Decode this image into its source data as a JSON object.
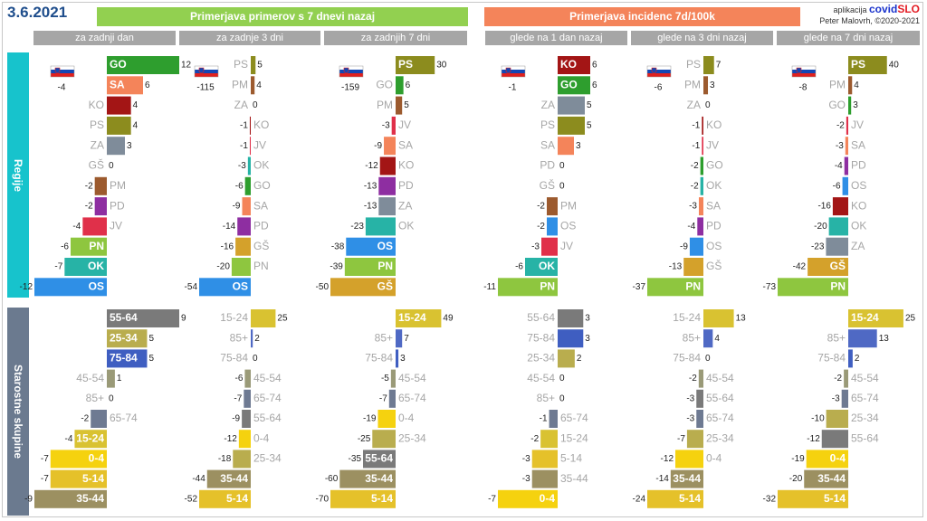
{
  "header": {
    "date": "3.6.2021",
    "banner_left": "Primerjava primerov s 7 dnevi nazaj",
    "banner_right": "Primerjava incidenc 7d/100k",
    "app_label": "aplikacija",
    "brand_a": "covid",
    "brand_b": "SLO",
    "author": "Peter Malovrh, ©2020-2021"
  },
  "columns": [
    "za zadnji dan",
    "za zadnje 3 dni",
    "za zadnjih 7 dni",
    "glede na 1 dan nazaj",
    "glede na 3 dni nazaj",
    "glede na 7 dni nazaj"
  ],
  "sides": {
    "regions": "Regije",
    "ages": "Starostne skupine"
  },
  "colors": {
    "GO": "#2e9e2e",
    "SA": "#f4845a",
    "KO": "#a31515",
    "PS": "#8c8c1e",
    "ZA": "#7f8c9a",
    "GŠ": "#d4a12b",
    "PM": "#9c5a2e",
    "PD": "#8e2ea1",
    "JV": "#e0304a",
    "PN": "#8ec63f",
    "OK": "#27b3a6",
    "OS": "#2f8fe6",
    "55-64": "#7a7a7a",
    "25-34": "#b9ad4e",
    "75-84": "#3f5ec1",
    "45-54": "#9a9a78",
    "85+": "#4f69c4",
    "65-74": "#6e7a92",
    "15-24": "#d9c231",
    "0-4": "#f5d20f",
    "5-14": "#e5c12a",
    "35-44": "#9c9061",
    "zero": "#bbbbbb",
    "label_gray": "#a6a6a6"
  },
  "chart_data": {
    "type": "bar",
    "panels": [
      {
        "name": "regions-1d",
        "column": 0,
        "group": "regions",
        "flag": true,
        "flag_value": -4,
        "max": 12,
        "categories": [
          "GO",
          "SA",
          "KO",
          "PS",
          "ZA",
          "GŠ",
          "PM",
          "PD",
          "JV",
          "PN",
          "OK",
          "OS"
        ],
        "values": [
          12,
          6,
          4,
          4,
          3,
          0,
          -2,
          -2,
          -4,
          -6,
          -7,
          -12
        ]
      },
      {
        "name": "regions-3d",
        "column": 1,
        "group": "regions",
        "flag": true,
        "flag_value": -115,
        "max": 54,
        "categories": [
          "PS",
          "PM",
          "ZA",
          "KO",
          "JV",
          "OK",
          "GO",
          "SA",
          "PD",
          "GŠ",
          "PN",
          "OS"
        ],
        "values": [
          5,
          4,
          0,
          -1,
          -1,
          -3,
          -6,
          -9,
          -14,
          -16,
          -20,
          -54
        ]
      },
      {
        "name": "regions-7d",
        "column": 2,
        "group": "regions",
        "flag": true,
        "flag_value": -159,
        "max": 50,
        "categories": [
          "PS",
          "GO",
          "PM",
          "JV",
          "SA",
          "KO",
          "PD",
          "ZA",
          "OK",
          "OS",
          "PN",
          "GŠ"
        ],
        "values": [
          30,
          6,
          5,
          -3,
          -9,
          -12,
          -13,
          -13,
          -23,
          -38,
          -39,
          -50
        ]
      },
      {
        "name": "regions-inc-1d",
        "column": 3,
        "group": "regions",
        "flag": true,
        "flag_value": -1,
        "max": 11,
        "categories": [
          "KO",
          "GO",
          "ZA",
          "PS",
          "SA",
          "PD",
          "GŠ",
          "PM",
          "OS",
          "JV",
          "OK",
          "PN"
        ],
        "values": [
          6,
          6,
          5,
          5,
          3,
          0,
          0,
          -2,
          -2,
          -3,
          -6,
          -11
        ]
      },
      {
        "name": "regions-inc-3d",
        "column": 4,
        "group": "regions",
        "flag": true,
        "flag_value": -6,
        "max": 37,
        "categories": [
          "PS",
          "PM",
          "ZA",
          "KO",
          "JV",
          "GO",
          "OK",
          "SA",
          "PD",
          "OS",
          "GŠ",
          "PN"
        ],
        "values": [
          7,
          3,
          0,
          -1,
          -1,
          -2,
          -2,
          -3,
          -4,
          -9,
          -13,
          -37
        ]
      },
      {
        "name": "regions-inc-7d",
        "column": 5,
        "group": "regions",
        "flag": true,
        "flag_value": -8,
        "max": 73,
        "categories": [
          "PS",
          "PM",
          "GO",
          "JV",
          "SA",
          "PD",
          "OS",
          "KO",
          "OK",
          "ZA",
          "GŠ",
          "PN"
        ],
        "values": [
          40,
          4,
          3,
          -2,
          -3,
          -4,
          -6,
          -16,
          -20,
          -23,
          -42,
          -73
        ]
      },
      {
        "name": "ages-1d",
        "column": 0,
        "group": "ages",
        "flag": false,
        "max": 9,
        "categories": [
          "55-64",
          "25-34",
          "75-84",
          "45-54",
          "85+",
          "65-74",
          "15-24",
          "0-4",
          "5-14",
          "35-44"
        ],
        "values": [
          9,
          5,
          5,
          1,
          0,
          -2,
          -4,
          -7,
          -7,
          -9
        ]
      },
      {
        "name": "ages-3d",
        "column": 1,
        "group": "ages",
        "flag": false,
        "max": 52,
        "categories": [
          "15-24",
          "85+",
          "75-84",
          "45-54",
          "65-74",
          "55-64",
          "0-4",
          "25-34",
          "35-44",
          "5-14"
        ],
        "values": [
          25,
          2,
          0,
          -6,
          -7,
          -9,
          -12,
          -18,
          -44,
          -52
        ]
      },
      {
        "name": "ages-7d",
        "column": 2,
        "group": "ages",
        "flag": false,
        "max": 70,
        "categories": [
          "15-24",
          "85+",
          "75-84",
          "45-54",
          "65-74",
          "0-4",
          "25-34",
          "55-64",
          "35-44",
          "5-14"
        ],
        "values": [
          49,
          7,
          3,
          -5,
          -7,
          -19,
          -25,
          -35,
          -60,
          -70
        ]
      },
      {
        "name": "ages-inc-1d",
        "column": 3,
        "group": "ages",
        "flag": false,
        "max": 7,
        "categories": [
          "55-64",
          "75-84",
          "25-34",
          "45-54",
          "85+",
          "65-74",
          "15-24",
          "5-14",
          "35-44",
          "0-4"
        ],
        "values": [
          3,
          3,
          2,
          0,
          0,
          -1,
          -2,
          -3,
          -3,
          -7
        ]
      },
      {
        "name": "ages-inc-3d",
        "column": 4,
        "group": "ages",
        "flag": false,
        "max": 24,
        "categories": [
          "15-24",
          "85+",
          "75-84",
          "45-54",
          "55-64",
          "65-74",
          "25-34",
          "0-4",
          "35-44",
          "5-14"
        ],
        "values": [
          13,
          4,
          0,
          -2,
          -3,
          -3,
          -7,
          -12,
          -14,
          -24
        ]
      },
      {
        "name": "ages-inc-7d",
        "column": 5,
        "group": "ages",
        "flag": false,
        "max": 32,
        "categories": [
          "15-24",
          "85+",
          "75-84",
          "45-54",
          "65-74",
          "25-34",
          "55-64",
          "0-4",
          "35-44",
          "5-14"
        ],
        "values": [
          25,
          13,
          2,
          -2,
          -3,
          -10,
          -12,
          -19,
          -20,
          -32
        ]
      }
    ]
  }
}
